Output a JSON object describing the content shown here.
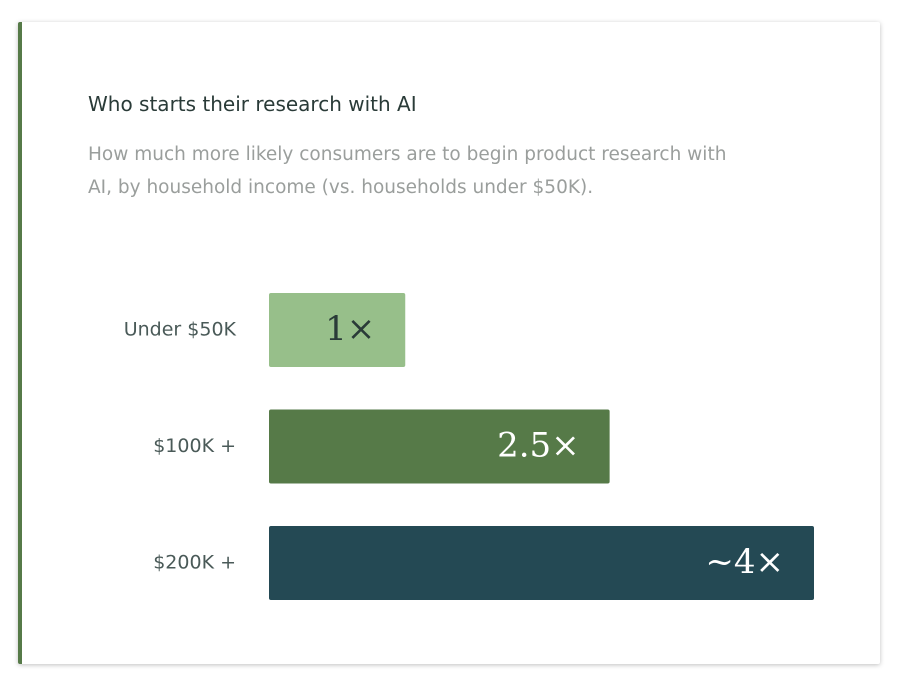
{
  "chart_data": {
    "type": "hbar",
    "title": "Who starts their research with AI",
    "subtitle": "How much more likely consumers are to begin product research with AI, by household income (vs. households under $50K).",
    "categories": [
      "Under $50K",
      "$100K +",
      "$200K +"
    ],
    "values": [
      1,
      2.5,
      4
    ],
    "value_labels": [
      "1×",
      "2.5×",
      "~4×"
    ],
    "colors": [
      "#97bf8a",
      "#567a48",
      "#244954"
    ]
  }
}
